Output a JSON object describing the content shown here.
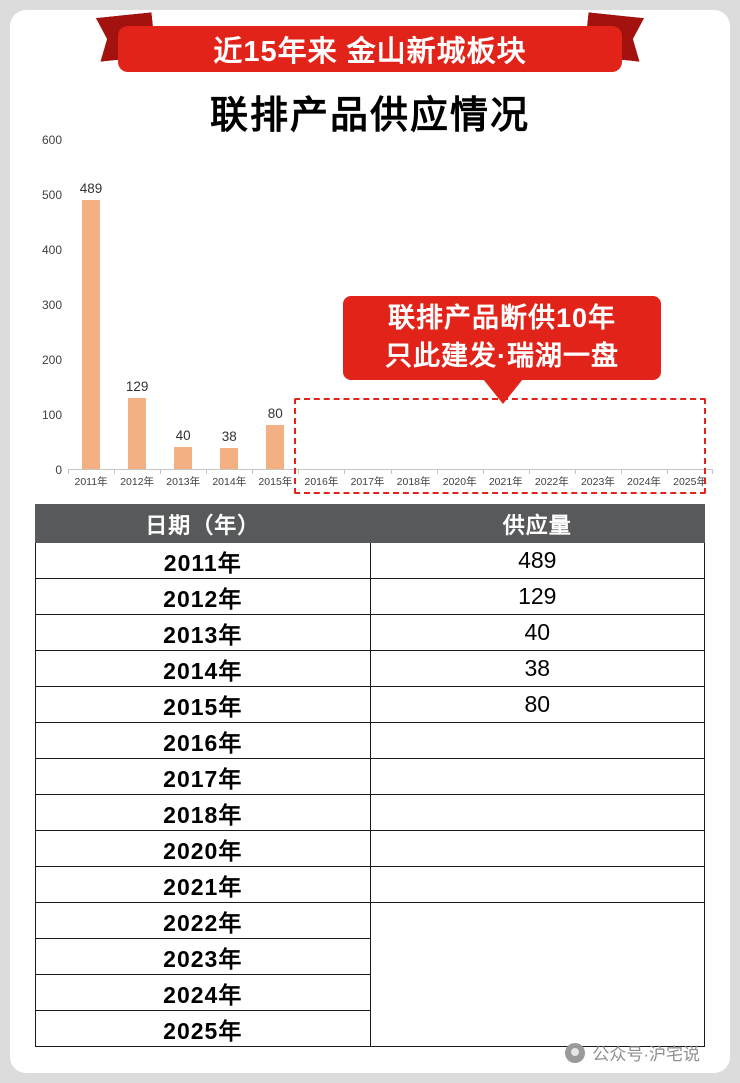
{
  "banner": {
    "text": "近15年来 金山新城板块"
  },
  "title": "联排产品供应情况",
  "chart_data": {
    "type": "bar",
    "categories": [
      "2011年",
      "2012年",
      "2013年",
      "2014年",
      "2015年",
      "2016年",
      "2017年",
      "2018年",
      "2020年",
      "2021年",
      "2022年",
      "2023年",
      "2024年",
      "2025年"
    ],
    "values": [
      489,
      129,
      40,
      38,
      80,
      null,
      null,
      null,
      null,
      null,
      null,
      null,
      null,
      null
    ],
    "title": "联排产品供应情况",
    "xlabel": "",
    "ylabel": "",
    "ylim": [
      0,
      600
    ],
    "yticks": [
      0,
      100,
      200,
      300,
      400,
      500,
      600
    ],
    "bar_color": "#f3b183",
    "grid": false,
    "legend": false,
    "annotation": "联排产品断供10年 只此建发·瑞湖一盘"
  },
  "callout": {
    "line1": "联排产品断供10年",
    "line2": "只此建发·瑞湖一盘"
  },
  "table": {
    "headers": [
      "日期（年）",
      "供应量"
    ],
    "rows": [
      [
        "2011年",
        "489"
      ],
      [
        "2012年",
        "129"
      ],
      [
        "2013年",
        "40"
      ],
      [
        "2014年",
        "38"
      ],
      [
        "2015年",
        "80"
      ],
      [
        "2016年",
        ""
      ],
      [
        "2017年",
        ""
      ],
      [
        "2018年",
        ""
      ],
      [
        "2020年",
        ""
      ],
      [
        "2021年",
        ""
      ],
      [
        "2022年",
        ""
      ],
      [
        "2023年",
        ""
      ],
      [
        "2024年",
        ""
      ],
      [
        "2025年",
        ""
      ]
    ],
    "supply_merge": {
      "start_index": 10,
      "span": 4
    }
  },
  "watermark": {
    "text": "公众号·沪宅说"
  },
  "colors": {
    "banner_red": "#e2231a",
    "ribbon_dark_red": "#a3120e",
    "bar_orange": "#f3b183",
    "table_header_bg": "#58595b",
    "dashed_red": "#e2231a"
  }
}
